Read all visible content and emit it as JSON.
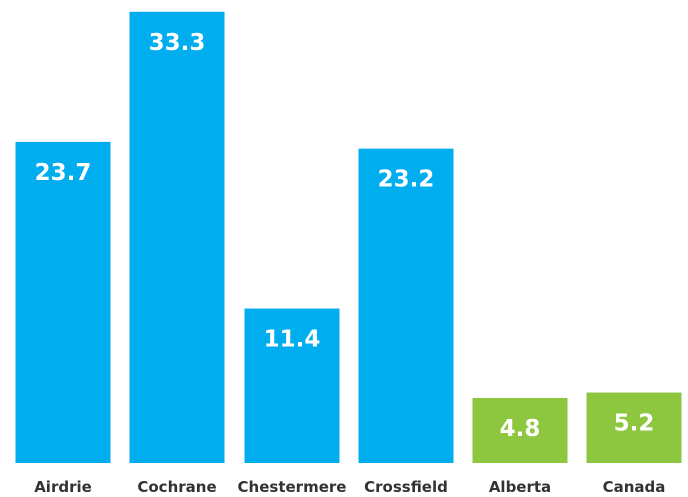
{
  "chart_data": {
    "type": "bar",
    "title": "",
    "xlabel": "",
    "ylabel": "",
    "categories": [
      "Airdrie",
      "Cochrane",
      "Chestermere",
      "Crossfield",
      "Alberta",
      "Canada"
    ],
    "values": [
      23.7,
      33.3,
      11.4,
      23.2,
      4.8,
      5.2
    ],
    "value_labels": [
      "23.7",
      "33.3",
      "11.4",
      "23.2",
      "4.8",
      "5.2"
    ],
    "ylim": [
      0,
      35
    ],
    "grid": false,
    "legend": "none",
    "colors": [
      "#00adee",
      "#00adee",
      "#00adee",
      "#00adee",
      "#8dc63f",
      "#8dc63f"
    ]
  }
}
